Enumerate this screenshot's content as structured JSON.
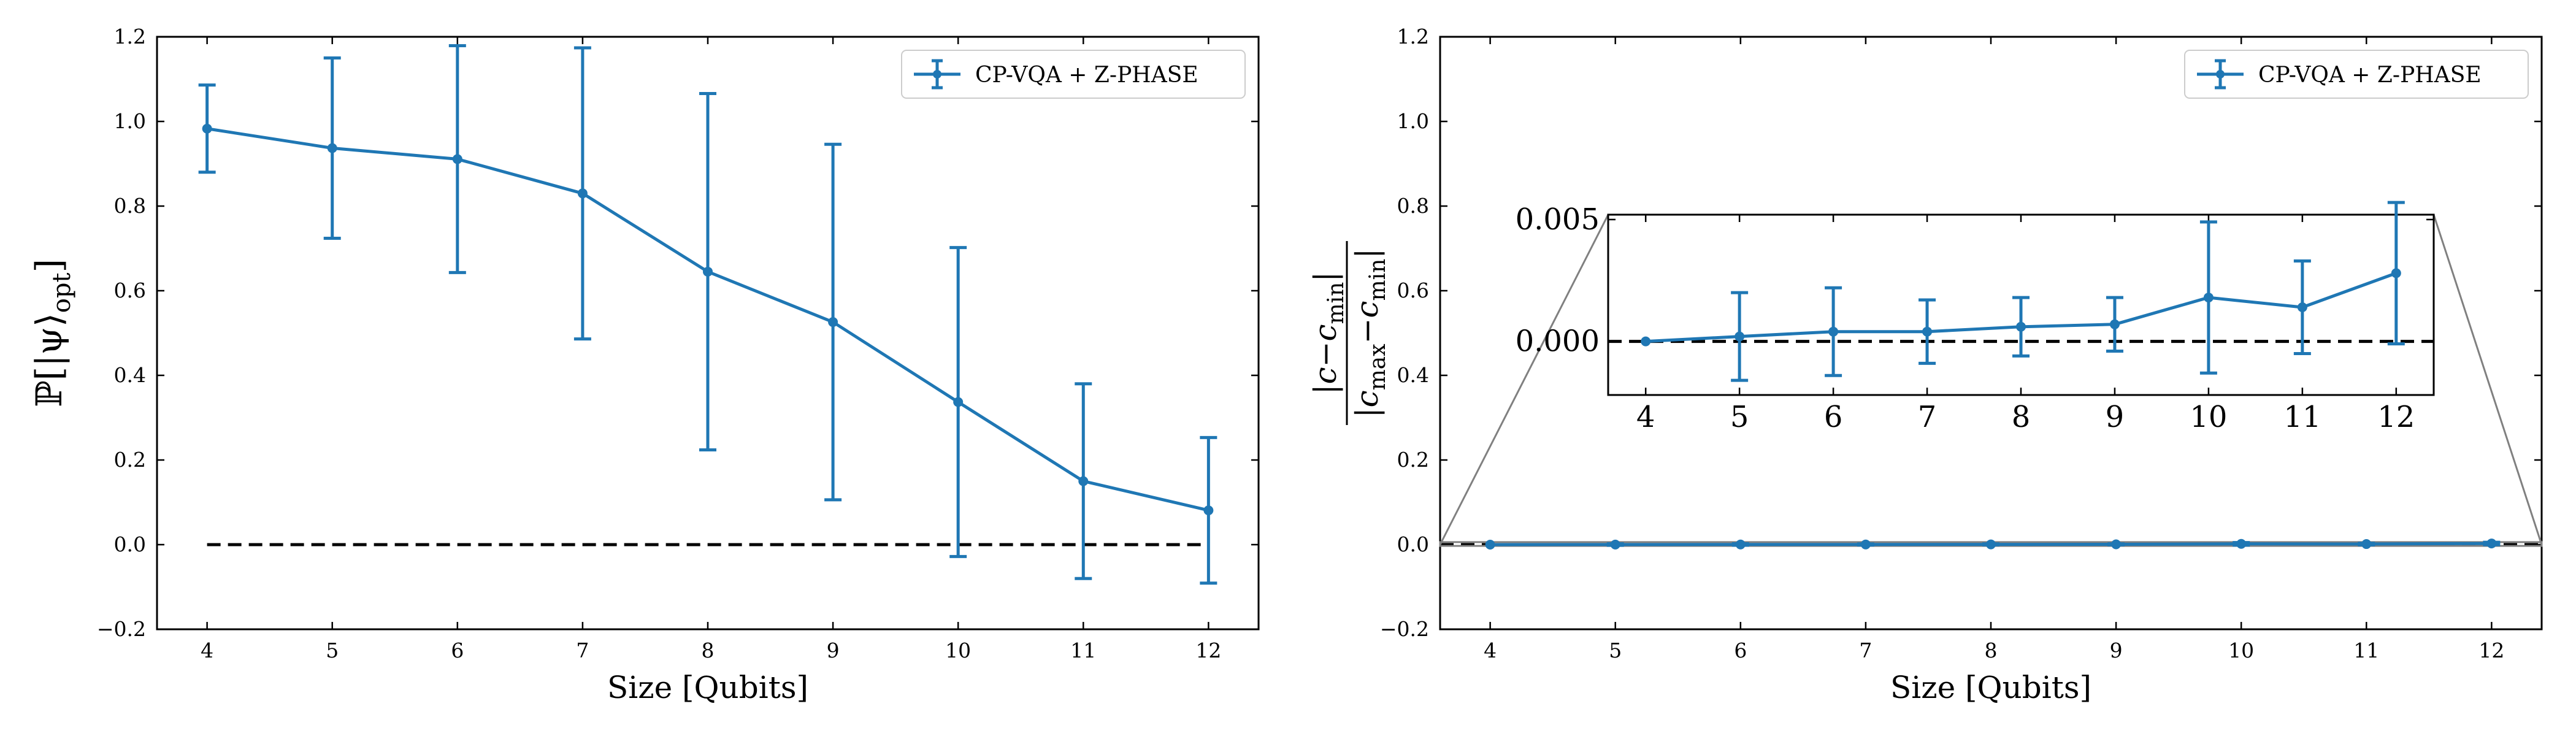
{
  "colors": {
    "series": "#1f77b4",
    "reference": "#000000",
    "frame": "#000000",
    "zoom_lines": "#808080"
  },
  "chart_data": [
    {
      "type": "line",
      "xlabel": "Size [Qubits]",
      "ylabel": "ℙ[|ψ⟩opt]",
      "ylabel_parts": {
        "main": "ℙ[|ψ⟩",
        "sub": "opt",
        "close": "]"
      },
      "xlim": [
        3.6,
        12.4
      ],
      "ylim": [
        -0.2,
        1.2
      ],
      "xticks": [
        4,
        5,
        6,
        7,
        8,
        9,
        10,
        11,
        12
      ],
      "yticks": [
        -0.2,
        0.0,
        0.2,
        0.4,
        0.6,
        0.8,
        1.0,
        1.2
      ],
      "ytick_labels": [
        "−0.2",
        "0.0",
        "0.2",
        "0.4",
        "0.6",
        "0.8",
        "1.0",
        "1.2"
      ],
      "legend": "top-right",
      "series": [
        {
          "name": "CP-VQA + Z-PHASE",
          "x": [
            4,
            5,
            6,
            7,
            8,
            9,
            10,
            11,
            12
          ],
          "y": [
            0.983,
            0.937,
            0.911,
            0.83,
            0.645,
            0.526,
            0.337,
            0.15,
            0.081
          ],
          "yerr": [
            0.103,
            0.213,
            0.268,
            0.344,
            0.421,
            0.42,
            0.365,
            0.23,
            0.172
          ]
        }
      ],
      "reference_line": {
        "y": 0.0,
        "x": [
          4,
          12
        ],
        "style": "dashed"
      }
    },
    {
      "type": "line",
      "xlabel": "Size [Qubits]",
      "ylabel": "|c − c_min| / |c_max − c_min|",
      "ylabel_parts": {
        "numerator": "|c−c",
        "numerator_sub": "min",
        "numerator_close": "|",
        "denominator": "|c",
        "denominator_sub1": "max",
        "denominator_mid": "−c",
        "denominator_sub2": "min",
        "denominator_close": "|"
      },
      "xlim": [
        3.6,
        12.4
      ],
      "ylim": [
        -0.2,
        1.2
      ],
      "xticks": [
        4,
        5,
        6,
        7,
        8,
        9,
        10,
        11,
        12
      ],
      "yticks": [
        -0.2,
        0.0,
        0.2,
        0.4,
        0.6,
        0.8,
        1.0,
        1.2
      ],
      "ytick_labels": [
        "−0.2",
        "0.0",
        "0.2",
        "0.4",
        "0.6",
        "0.8",
        "1.0",
        "1.2"
      ],
      "legend": "top-right",
      "series": [
        {
          "name": "CP-VQA + Z-PHASE",
          "x": [
            4,
            5,
            6,
            7,
            8,
            9,
            10,
            11,
            12
          ],
          "y": [
            0.0,
            0.0002,
            0.0004,
            0.0004,
            0.0006,
            0.0007,
            0.0018,
            0.0014,
            0.0028
          ],
          "yerr": [
            0.0,
            0.0018,
            0.0018,
            0.0013,
            0.0012,
            0.0011,
            0.0031,
            0.0019,
            0.0029
          ]
        }
      ],
      "reference_line": {
        "y": 0.0,
        "style": "dashed"
      },
      "inset": {
        "xlim": [
          3.6,
          12.4
        ],
        "ylim": [
          -0.0022,
          0.0052
        ],
        "yticks": [
          0.0,
          0.005
        ],
        "ytick_labels": [
          "0.000",
          "0.005"
        ],
        "xticks": [
          4,
          5,
          6,
          7,
          8,
          9,
          10,
          11,
          12
        ],
        "zoom_region_y": [
          -0.003,
          0.006
        ]
      }
    }
  ]
}
